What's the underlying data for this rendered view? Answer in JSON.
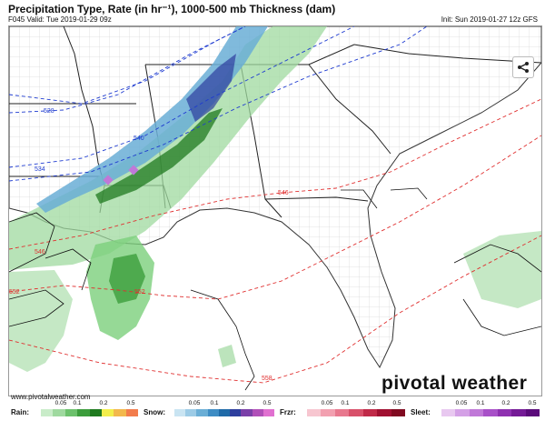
{
  "header": {
    "title": "Precipitation Type, Rate (in hr⁻¹), 1000-500 mb Thickness (dam)",
    "valid": "F045 Valid: Tue 2019-01-29 09z",
    "init": "Init: Sun 2019-01-27 12z GFS"
  },
  "map": {
    "thickness_labels": [
      "528",
      "534",
      "540",
      "546",
      "546",
      "552",
      "552",
      "558"
    ]
  },
  "branding": {
    "logo": "pivotal weather",
    "url": "www.pivotalweather.com"
  },
  "legend": [
    {
      "label": "Rain:",
      "ticks": [
        "0.05",
        "0.1",
        "0.2",
        "0.5"
      ],
      "colors": [
        "#c9ecc9",
        "#9fd99f",
        "#6cc16c",
        "#3c9d3c",
        "#1f7a1f",
        "#f2ee4c",
        "#f2b84c",
        "#f27c4c"
      ]
    },
    {
      "label": "Snow:",
      "ticks": [
        "0.05",
        "0.1",
        "0.2",
        "0.5"
      ],
      "colors": [
        "#c9e4f2",
        "#9ccbe6",
        "#6aaed6",
        "#3d8cc4",
        "#1f6aa8",
        "#2e3f9e",
        "#7a3fa8",
        "#b04fb8",
        "#e070d0"
      ]
    },
    {
      "label": "Frzr:",
      "ticks": [
        "0.05",
        "0.1",
        "0.2",
        "0.5"
      ],
      "colors": [
        "#f7c6d0",
        "#f2a0b0",
        "#e8788e",
        "#d8506a",
        "#c02a48",
        "#a01030",
        "#800a20"
      ]
    },
    {
      "label": "Sleet:",
      "ticks": [
        "0.05",
        "0.1",
        "0.2",
        "0.5"
      ],
      "colors": [
        "#e8c8f0",
        "#d4a0e6",
        "#c078d8",
        "#a850c8",
        "#8e30b0",
        "#741a96",
        "#5a0a7a"
      ]
    }
  ],
  "colors": {
    "rain": "#7ccf7c",
    "snow": "#6aaed6",
    "thickness_cold": "#1e3bd0",
    "thickness_warm": "#e03030",
    "boundaries": "#333333"
  }
}
